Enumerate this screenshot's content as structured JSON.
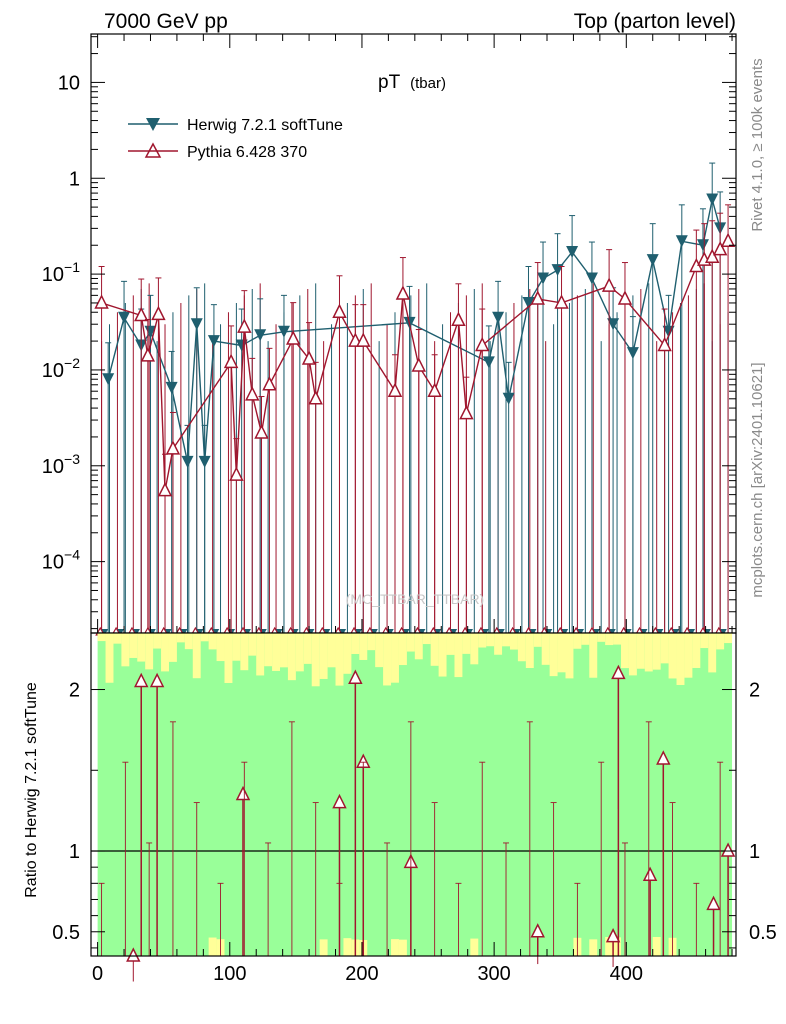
{
  "header": {
    "left": "7000 GeV pp",
    "right": "Top (parton level)"
  },
  "side_labels": {
    "rivet": "Rivet 4.1.0, ≥ 100k events",
    "mcplots": "mcplots.cern.ch [arXiv:2401.10621]"
  },
  "colors": {
    "herwig": "#1f5f6f",
    "pythia": "#a0162e",
    "band_inner": "#99ff99",
    "band_outer": "#ffff99"
  },
  "chart_data": [
    {
      "type": "line",
      "name": "main",
      "title": "pT",
      "title_sub": "(tbar)",
      "watermark": "(MC_TTBAR_TTBAR)",
      "xlabel": "",
      "ylabel": "",
      "xlim": [
        -5,
        483
      ],
      "ylog": true,
      "ylim": [
        1.8e-05,
        32
      ],
      "y_tick_labels": [
        {
          "value": 10,
          "base": "10",
          "exp": ""
        },
        {
          "value": 1,
          "base": "1",
          "exp": ""
        },
        {
          "value": 0.1,
          "base": "10",
          "exp": "−1"
        },
        {
          "value": 0.01,
          "base": "10",
          "exp": "−2"
        },
        {
          "value": 0.001,
          "base": "10",
          "exp": "−3"
        },
        {
          "value": 0.0001,
          "base": "10",
          "exp": "−4"
        }
      ],
      "legend": [
        {
          "label": "Herwig 7.2.1 softTune",
          "marker": "triangle-down",
          "series": "herwig"
        },
        {
          "label": "Pythia 6.428 370",
          "marker": "triangle-up-open",
          "series": "pythia"
        }
      ],
      "legend_position": "top-left",
      "series": [
        {
          "name": "Herwig 7.2.1 softTune",
          "points": [
            {
              "x": 8,
              "y": 0.008
            },
            {
              "x": 20,
              "y": 0.035
            },
            {
              "x": 33,
              "y": 0.018
            },
            {
              "x": 40,
              "y": 0.025
            },
            {
              "x": 56,
              "y": 0.0065
            },
            {
              "x": 68,
              "y": 0.0011
            },
            {
              "x": 75,
              "y": 0.03
            },
            {
              "x": 81,
              "y": 0.0011
            },
            {
              "x": 88,
              "y": 0.02
            },
            {
              "x": 109,
              "y": 0.018
            },
            {
              "x": 123,
              "y": 0.023
            },
            {
              "x": 141,
              "y": 0.025
            },
            {
              "x": 236,
              "y": 0.031
            },
            {
              "x": 296,
              "y": 0.012
            },
            {
              "x": 303,
              "y": 0.035
            },
            {
              "x": 311,
              "y": 0.005
            },
            {
              "x": 326,
              "y": 0.05
            },
            {
              "x": 337,
              "y": 0.09
            },
            {
              "x": 348,
              "y": 0.11
            },
            {
              "x": 359,
              "y": 0.17
            },
            {
              "x": 374,
              "y": 0.09
            },
            {
              "x": 390,
              "y": 0.03
            },
            {
              "x": 405,
              "y": 0.015
            },
            {
              "x": 420,
              "y": 0.14
            },
            {
              "x": 432,
              "y": 0.025
            },
            {
              "x": 442,
              "y": 0.22
            },
            {
              "x": 458,
              "y": 0.2
            },
            {
              "x": 465,
              "y": 0.6
            },
            {
              "x": 471,
              "y": 0.3
            }
          ]
        },
        {
          "name": "Pythia 6.428 370",
          "points": [
            {
              "x": 3,
              "y": 0.05
            },
            {
              "x": 33,
              "y": 0.037
            },
            {
              "x": 38,
              "y": 0.014
            },
            {
              "x": 46,
              "y": 0.038
            },
            {
              "x": 51,
              "y": 0.00055
            },
            {
              "x": 57,
              "y": 0.0015
            },
            {
              "x": 101,
              "y": 0.012
            },
            {
              "x": 105,
              "y": 0.0008
            },
            {
              "x": 111,
              "y": 0.028
            },
            {
              "x": 117,
              "y": 0.0055
            },
            {
              "x": 124,
              "y": 0.0022
            },
            {
              "x": 130,
              "y": 0.007
            },
            {
              "x": 148,
              "y": 0.021
            },
            {
              "x": 160,
              "y": 0.013
            },
            {
              "x": 165,
              "y": 0.005
            },
            {
              "x": 183,
              "y": 0.04
            },
            {
              "x": 195,
              "y": 0.02
            },
            {
              "x": 201,
              "y": 0.02
            },
            {
              "x": 225,
              "y": 0.006
            },
            {
              "x": 231,
              "y": 0.062
            },
            {
              "x": 243,
              "y": 0.011
            },
            {
              "x": 255,
              "y": 0.006
            },
            {
              "x": 273,
              "y": 0.033
            },
            {
              "x": 279,
              "y": 0.0035
            },
            {
              "x": 291,
              "y": 0.018
            },
            {
              "x": 333,
              "y": 0.055
            },
            {
              "x": 351,
              "y": 0.05
            },
            {
              "x": 387,
              "y": 0.075
            },
            {
              "x": 399,
              "y": 0.055
            },
            {
              "x": 429,
              "y": 0.018
            },
            {
              "x": 453,
              "y": 0.12
            },
            {
              "x": 459,
              "y": 0.14
            },
            {
              "x": 465,
              "y": 0.15
            },
            {
              "x": 471,
              "y": 0.18
            },
            {
              "x": 477,
              "y": 0.22
            }
          ]
        }
      ]
    },
    {
      "type": "line",
      "name": "ratio",
      "xlabel": "",
      "ylabel": "Ratio to Herwig 7.2.1 softTune",
      "xlim": [
        -5,
        483
      ],
      "ylim": [
        0.35,
        2.35
      ],
      "x_ticks": [
        0,
        100,
        200,
        300,
        400
      ],
      "y_tick_labels": [
        "0.5",
        "1",
        "2"
      ],
      "y_ticks": [
        0.5,
        1,
        2
      ],
      "reference_line": 1,
      "series": [
        {
          "name": "Pythia 6.428 370",
          "points": [
            {
              "x": 27,
              "y": 0.32
            },
            {
              "x": 33,
              "y": 2.05
            },
            {
              "x": 45,
              "y": 2.05
            },
            {
              "x": 110,
              "y": 1.35
            },
            {
              "x": 183,
              "y": 1.3
            },
            {
              "x": 195,
              "y": 2.07
            },
            {
              "x": 201,
              "y": 1.55
            },
            {
              "x": 237,
              "y": 0.93
            },
            {
              "x": 333,
              "y": 0.5
            },
            {
              "x": 390,
              "y": 0.47
            },
            {
              "x": 394,
              "y": 2.1
            },
            {
              "x": 418,
              "y": 0.85
            },
            {
              "x": 428,
              "y": 1.57
            },
            {
              "x": 466,
              "y": 0.67
            },
            {
              "x": 477,
              "y": 1.0
            }
          ]
        }
      ]
    }
  ]
}
